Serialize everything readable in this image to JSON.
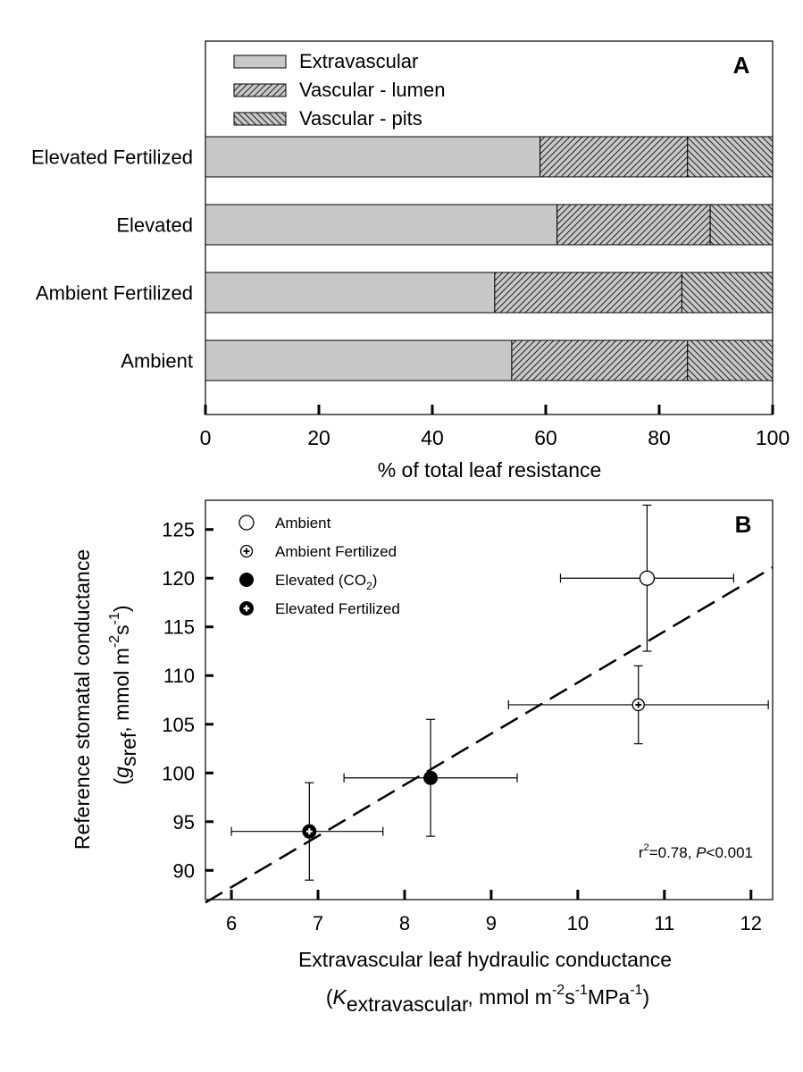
{
  "chart_data": [
    {
      "panel": "A",
      "type": "bar",
      "orientation": "horizontal",
      "stacked": true,
      "xlabel": "% of total leaf resistance",
      "xlim": [
        0,
        100
      ],
      "xticks": [
        0,
        20,
        40,
        60,
        80,
        100
      ],
      "categories": [
        "Elevated Fertilized",
        "Elevated",
        "Ambient Fertilized",
        "Ambient"
      ],
      "series": [
        {
          "name": "Extravascular",
          "fill": "solid",
          "color": "#c8c8c8",
          "values": [
            59,
            62,
            51,
            54
          ]
        },
        {
          "name": "Vascular - lumen",
          "fill": "hatch-forward",
          "color": "#c8c8c8",
          "values": [
            26,
            27,
            33,
            31
          ]
        },
        {
          "name": "Vascular - pits",
          "fill": "hatch-back",
          "color": "#c8c8c8",
          "values": [
            15,
            11,
            16,
            15
          ]
        }
      ],
      "legend_position": "top-left"
    },
    {
      "panel": "B",
      "type": "scatter",
      "xlabel_line1": "Extravascular leaf hydraulic conductance",
      "xlabel_line2": {
        "open": "(",
        "symbol": "K",
        "subscript": "extravascular",
        "units": ", mmol m",
        "sup1": "-2",
        "mid": "s",
        "sup2": "-1",
        "end": "MPa",
        "sup3": "-1",
        "close": ")"
      },
      "ylabel_line1": "Reference stomatal conductance",
      "ylabel_line2": {
        "open": "(",
        "symbol": "g",
        "subscript": "sref",
        "units": ", mmol m",
        "sup1": "-2",
        "mid": "s",
        "sup2": "-1",
        "close": ")"
      },
      "xlim": [
        5.7,
        12.25
      ],
      "ylim": [
        87,
        128
      ],
      "xticks": [
        6,
        7,
        8,
        9,
        10,
        11,
        12
      ],
      "yticks": [
        90,
        95,
        100,
        105,
        110,
        115,
        120,
        125
      ],
      "points": [
        {
          "name": "Ambient",
          "marker": "open",
          "x": 10.8,
          "y": 120,
          "xerr": [
            9.8,
            11.8
          ],
          "yerr": [
            112.5,
            127.5
          ]
        },
        {
          "name": "Ambient Fertilized",
          "marker": "open-plus",
          "x": 10.7,
          "y": 107,
          "xerr": [
            9.2,
            12.2
          ],
          "yerr": [
            103,
            111
          ]
        },
        {
          "name": "Elevated",
          "name_sub": "CO",
          "name_sub2": "2",
          "marker": "filled",
          "x": 8.3,
          "y": 99.5,
          "xerr": [
            7.3,
            9.3
          ],
          "yerr": [
            93.5,
            105.5
          ]
        },
        {
          "name": "Elevated Fertilized",
          "marker": "filled-plus",
          "x": 6.9,
          "y": 94,
          "xerr": [
            6.0,
            7.75
          ],
          "yerr": [
            89,
            99
          ]
        }
      ],
      "fit_line": {
        "style": "dashed",
        "from": [
          5.7,
          86.7
        ],
        "to": [
          12.25,
          121.1
        ]
      },
      "annotation": {
        "r_prefix": "r",
        "r_sup": "2",
        "r_rest": "=0.78, ",
        "p_symbol": "P",
        "p_rest": "<0.001"
      },
      "legend_position": "top-left"
    }
  ]
}
